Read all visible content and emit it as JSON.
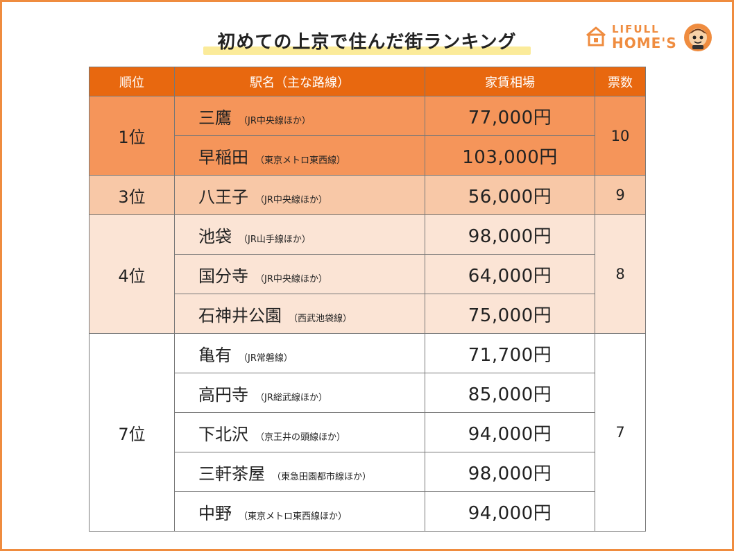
{
  "title": "初めての上京で住んだ街ランキング",
  "logo": {
    "top": "LIFULL",
    "bottom": "HOME'S"
  },
  "colors": {
    "header": "#e8680f",
    "rank1": "#f5955a",
    "rank3": "#f8c8a7",
    "rank4": "#fbe4d5",
    "border": "#ef8c3f",
    "highlight": "#fbeb9a"
  },
  "table": {
    "headers": {
      "rank": "順位",
      "station": "駅名（主な路線）",
      "rent": "家賃相場",
      "votes": "票数"
    },
    "groups": [
      {
        "rank": "1位",
        "votes": "10",
        "rows": [
          {
            "name": "三鷹",
            "line": "（JR中央線ほか）",
            "rent": "77,000円"
          },
          {
            "name": "早稲田",
            "line": "（東京メトロ東西線）",
            "rent": "103,000円"
          }
        ]
      },
      {
        "rank": "3位",
        "votes": "9",
        "rows": [
          {
            "name": "八王子",
            "line": "（JR中央線ほか）",
            "rent": "56,000円"
          }
        ]
      },
      {
        "rank": "4位",
        "votes": "8",
        "rows": [
          {
            "name": "池袋",
            "line": "（JR山手線ほか）",
            "rent": "98,000円"
          },
          {
            "name": "国分寺",
            "line": "（JR中央線ほか）",
            "rent": "64,000円"
          },
          {
            "name": "石神井公園",
            "line": "（西武池袋線）",
            "rent": "75,000円"
          }
        ]
      },
      {
        "rank": "7位",
        "votes": "7",
        "rows": [
          {
            "name": "亀有",
            "line": "（JR常磐線）",
            "rent": "71,700円"
          },
          {
            "name": "高円寺",
            "line": "（JR総武線ほか）",
            "rent": "85,000円"
          },
          {
            "name": "下北沢",
            "line": "（京王井の頭線ほか）",
            "rent": "94,000円"
          },
          {
            "name": "三軒茶屋",
            "line": "（東急田園都市線ほか）",
            "rent": "98,000円"
          },
          {
            "name": "中野",
            "line": "（東京メトロ東西線ほか）",
            "rent": "94,000円"
          }
        ]
      }
    ]
  }
}
